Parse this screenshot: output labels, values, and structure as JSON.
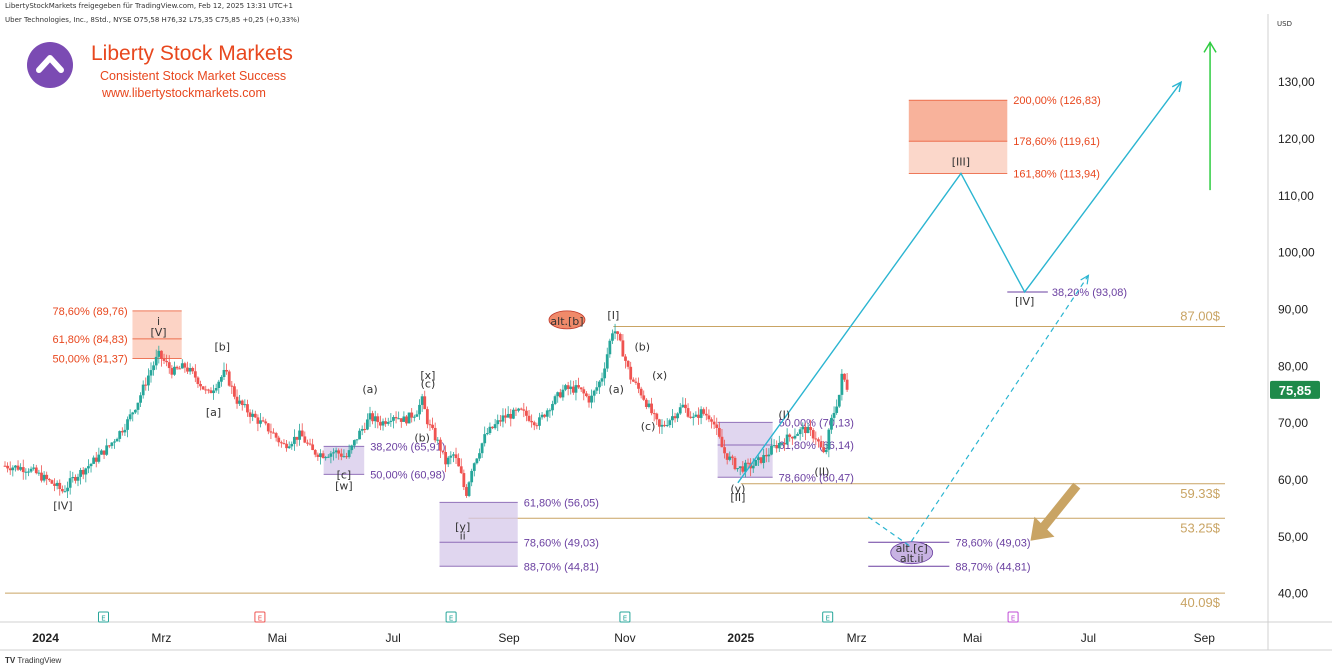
{
  "header": {
    "top_line": "LibertyStockMarkets freigegeben für TradingView.com, Feb 12, 2025 13:31 UTC+1",
    "symbol_line": "Uber Technologies, Inc., 8Std., NYSE  O75,58  H76,32  L75,35  C75,85  +0,25 (+0,33%)"
  },
  "branding": {
    "title": "Liberty Stock Markets",
    "subtitle": "Consistent Stock Market Success",
    "url": "www.libertystockmarkets.com"
  },
  "footer": {
    "label": "TradingView"
  },
  "colors": {
    "candle_up": "#26a69a",
    "candle_down": "#ef5350",
    "fib_red": "#e8471e",
    "fib_purple": "#6a3fa0",
    "horizontal_level": "#c9a464",
    "projection": "#2bb5d1",
    "target_arrow": "#2ecc40",
    "down_arrow": "#c9a464",
    "price_tag": "#1e8a4a"
  },
  "chart_data": {
    "type": "candlestick",
    "title": "",
    "currency": "USD",
    "last_price": "75,85",
    "y_range": [
      35,
      142
    ],
    "y_ticks": [
      "130,00",
      "120,00",
      "110,00",
      "100,00",
      "90,00",
      "80,00",
      "70,00",
      "60,00",
      "50,00",
      "40,00"
    ],
    "y_tick_values": [
      130,
      120,
      110,
      100,
      90,
      80,
      70,
      60,
      50,
      40
    ],
    "x_ticks": [
      "2024",
      "Mrz",
      "Mai",
      "Jul",
      "Sep",
      "Nov",
      "2025",
      "Mrz",
      "Mai",
      "Jul",
      "Sep"
    ],
    "x_tick_times": [
      0,
      2,
      4,
      6,
      8,
      10,
      12,
      14,
      16,
      18,
      20
    ],
    "x_range": [
      -0.7,
      21.1
    ],
    "price_path": [
      [
        -0.7,
        62.5
      ],
      [
        -0.3,
        62
      ],
      [
        0.1,
        59.5
      ],
      [
        0.3,
        58
      ],
      [
        0.5,
        60.5
      ],
      [
        0.8,
        63
      ],
      [
        1.1,
        66
      ],
      [
        1.4,
        70
      ],
      [
        1.6,
        74
      ],
      [
        1.8,
        79
      ],
      [
        1.95,
        82
      ],
      [
        2.2,
        79
      ],
      [
        2.4,
        80
      ],
      [
        2.6,
        78
      ],
      [
        2.8,
        75
      ],
      [
        3.1,
        79
      ],
      [
        3.3,
        74
      ],
      [
        3.6,
        71
      ],
      [
        3.9,
        68.5
      ],
      [
        4.1,
        66
      ],
      [
        4.4,
        68
      ],
      [
        4.6,
        65
      ],
      [
        4.8,
        64.5
      ],
      [
        5.0,
        65
      ],
      [
        5.2,
        64
      ],
      [
        5.4,
        68
      ],
      [
        5.6,
        71
      ],
      [
        5.8,
        70
      ],
      [
        6.0,
        71.5
      ],
      [
        6.2,
        70.5
      ],
      [
        6.4,
        72
      ],
      [
        6.5,
        74
      ],
      [
        6.6,
        70
      ],
      [
        6.8,
        66
      ],
      [
        6.9,
        63
      ],
      [
        7.05,
        64.5
      ],
      [
        7.2,
        60
      ],
      [
        7.25,
        57
      ],
      [
        7.35,
        62
      ],
      [
        7.6,
        68
      ],
      [
        7.9,
        71
      ],
      [
        8.2,
        72
      ],
      [
        8.5,
        70
      ],
      [
        8.7,
        73
      ],
      [
        8.95,
        76
      ],
      [
        9.2,
        76
      ],
      [
        9.4,
        74
      ],
      [
        9.6,
        78
      ],
      [
        9.8,
        87
      ],
      [
        9.95,
        83
      ],
      [
        10.1,
        78
      ],
      [
        10.3,
        75
      ],
      [
        10.45,
        72
      ],
      [
        10.6,
        69
      ],
      [
        10.8,
        71
      ],
      [
        11.0,
        73
      ],
      [
        11.2,
        70.5
      ],
      [
        11.3,
        72
      ],
      [
        11.5,
        71
      ],
      [
        11.7,
        65
      ],
      [
        11.95,
        62
      ],
      [
        12.2,
        62.5
      ],
      [
        12.4,
        64
      ],
      [
        12.6,
        66
      ],
      [
        12.9,
        68
      ],
      [
        13.1,
        69
      ],
      [
        13.3,
        67.5
      ],
      [
        13.45,
        64
      ],
      [
        13.55,
        70
      ],
      [
        13.7,
        75
      ],
      [
        13.75,
        78.5
      ],
      [
        13.85,
        76
      ]
    ],
    "horizontal_levels": [
      {
        "value": 87.0,
        "label": "87.00$",
        "from": 9.8
      },
      {
        "value": 59.33,
        "label": "59.33$",
        "from": 12.0
      },
      {
        "value": 53.25,
        "label": "53.25$",
        "from": 7.3
      },
      {
        "value": 40.09,
        "label": "40.09$",
        "from": -0.7
      }
    ],
    "fib_zones": [
      {
        "color": "red",
        "t0": 1.5,
        "t1": 2.35,
        "top": 89.76,
        "bottom": 81.37,
        "mid": 84.83,
        "labels": [
          "78,60% (89,76)",
          "61,80% (84,83)",
          "50,00% (81,37)"
        ]
      },
      {
        "color": "purple",
        "t0": 4.8,
        "t1": 5.5,
        "top": 65.91,
        "bottom": 60.98,
        "mid": null,
        "labels": [
          "38,20% (65,91)",
          "50,00% (60,98)"
        ]
      },
      {
        "color": "purple",
        "t0": 6.8,
        "t1": 8.15,
        "top": 56.05,
        "bottom": 44.81,
        "mid": 49.03,
        "labels": [
          "61,80% (56,05)",
          "78,60% (49,03)",
          "88,70% (44,81)"
        ]
      },
      {
        "color": "purple",
        "t0": 11.6,
        "t1": 12.55,
        "top": 70.13,
        "bottom": 60.47,
        "mid": 66.14,
        "labels": [
          "50,00% (70,13)",
          "61,80% (66,14)",
          "78,60% (60,47)"
        ]
      },
      {
        "color": "red",
        "t0": 14.9,
        "t1": 16.6,
        "top": 126.83,
        "bottom": 113.94,
        "mid": 119.61,
        "labels": [
          "200,00% (126,83)",
          "178,60% (119,61)",
          "161,80% (113,94)"
        ]
      }
    ],
    "alt_levels": {
      "labels": [
        "78,60% (49,03)",
        "88,70% (44,81)"
      ],
      "values": [
        49.03,
        44.81
      ],
      "t0": 14.2,
      "t1": 15.6
    },
    "iv_level": {
      "label": "38,20% (93,08)",
      "value": 93.08
    },
    "wave_labels": [
      [
        "[IV]",
        0.3,
        55.5
      ],
      [
        "[V]",
        1.95,
        86
      ],
      [
        "i",
        1.95,
        88
      ],
      [
        "[a]",
        2.9,
        72
      ],
      [
        "[b]",
        3.05,
        83.5
      ],
      [
        "[c]",
        5.15,
        61
      ],
      [
        "[w]",
        5.15,
        59
      ],
      [
        "(a)",
        5.6,
        76
      ],
      [
        "(b)",
        6.5,
        67.5
      ],
      [
        "[x]",
        6.6,
        78.5
      ],
      [
        "(c)",
        6.6,
        77
      ],
      [
        "[y]",
        7.2,
        51.8
      ],
      [
        "ii",
        7.2,
        50.2
      ],
      [
        "alt.[b]",
        9.0,
        88
      ],
      [
        "[I]",
        9.8,
        89
      ],
      [
        "(b)",
        10.3,
        83.5
      ],
      [
        "(a)",
        9.85,
        76
      ],
      [
        "(x)",
        10.6,
        78.5
      ],
      [
        "(c)",
        10.4,
        69.5
      ],
      [
        "(y)",
        11.95,
        58.5
      ],
      [
        "[II]",
        11.95,
        57
      ],
      [
        "(I)",
        12.75,
        71.5
      ],
      [
        "(II)",
        13.4,
        61.5
      ],
      [
        "[III]",
        15.8,
        116
      ],
      [
        "[IV]",
        16.9,
        91.5
      ],
      [
        "alt.[c]",
        14.95,
        48
      ],
      [
        "alt.ii",
        14.95,
        46.3
      ]
    ],
    "projection_path": [
      [
        11.95,
        59.5
      ],
      [
        15.8,
        113.94
      ],
      [
        16.9,
        93.08
      ],
      [
        19.6,
        130
      ]
    ],
    "alt_projection_path": [
      [
        14.2,
        53.5
      ],
      [
        14.9,
        48.5
      ],
      [
        18.0,
        96
      ]
    ],
    "target_arrow": {
      "t": 20.1,
      "from": 111,
      "to": 137
    },
    "earnings_markers": [
      [
        "E",
        1.0,
        "green"
      ],
      [
        "E",
        3.7,
        "red"
      ],
      [
        "E",
        7.0,
        "green"
      ],
      [
        "E",
        10.0,
        "green"
      ],
      [
        "E",
        13.5,
        "green"
      ],
      [
        "E",
        16.7,
        "purple"
      ]
    ]
  }
}
